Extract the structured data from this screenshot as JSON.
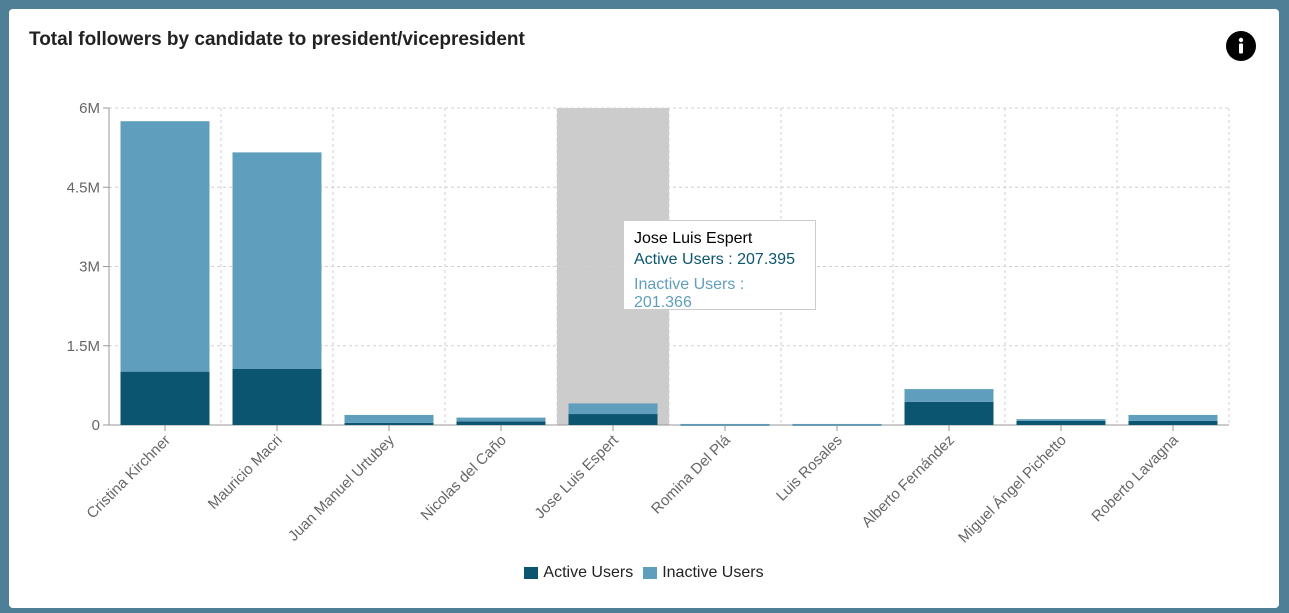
{
  "title": "Total followers by candidate to president/vicepresident",
  "info_icon": "info-icon",
  "colors": {
    "active": "#0b5570",
    "inactive": "#5f9fbd",
    "highlight": "#cccccc",
    "grid": "#d0d0d0"
  },
  "chart_data": {
    "type": "bar",
    "stacked": true,
    "categories": [
      "Cristina Kirchner",
      "Mauricio Macri",
      "Juan Manuel Urtubey",
      "Nicolas del Caño",
      "Jose Luis Espert",
      "Romina Del Plá",
      "Luis Rosales",
      "Alberto Fernández",
      "Miguel Ángel Pichetto",
      "Roberto Lavagna"
    ],
    "series": [
      {
        "name": "Active Users",
        "values": [
          1010000,
          1060000,
          40000,
          70000,
          207395,
          8000,
          8000,
          440000,
          80000,
          80000
        ]
      },
      {
        "name": "Inactive Users",
        "values": [
          4740000,
          4100000,
          150000,
          70000,
          201366,
          12000,
          12000,
          240000,
          30000,
          110000
        ]
      }
    ],
    "y_ticks": [
      "0",
      "1.5M",
      "3M",
      "4.5M",
      "6M"
    ],
    "ylim": [
      0,
      6000000
    ],
    "grid": true,
    "legend_position": "bottom",
    "highlighted_category": "Jose Luis Espert"
  },
  "legend": {
    "active_label": "Active Users",
    "inactive_label": "Inactive Users"
  },
  "tooltip": {
    "name": "Jose Luis Espert",
    "active": "Active Users : 207.395",
    "inactive": "Inactive Users : 201.366"
  }
}
